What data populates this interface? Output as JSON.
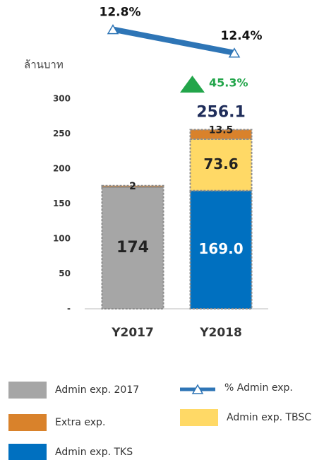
{
  "chart_data": {
    "type": "bar",
    "stacked": true,
    "y_label": "ล้านบาท",
    "categories": [
      "Y2017",
      "Y2018"
    ],
    "series": [
      {
        "name": "Admin exp. 2017",
        "color": "#a6a6a6",
        "values": [
          174,
          null
        ]
      },
      {
        "name": "Admin exp. TKS",
        "color": "#0070c0",
        "values": [
          null,
          169
        ],
        "value_labels": [
          null,
          "169.0"
        ]
      },
      {
        "name": "Admin exp. TBSC",
        "color": "#ffd966",
        "values": [
          null,
          73.6
        ]
      },
      {
        "name": "Extra exp.",
        "color": "#d9822b",
        "values": [
          2,
          13.5
        ]
      },
      {
        "name": "% Admin exp.",
        "type": "line",
        "axis": "y2",
        "color": "#2e75b6",
        "values": [
          12.8,
          12.4
        ],
        "value_labels": [
          "12.8%",
          "12.4%"
        ]
      }
    ],
    "totals": [
      null,
      256.1
    ],
    "annotation": "45.3%",
    "ylim": [
      0,
      300
    ],
    "yticks": [
      {
        "value": 0,
        "label": "-"
      },
      50,
      100,
      150,
      200,
      250,
      300
    ],
    "y2lim": [
      12,
      13
    ]
  }
}
